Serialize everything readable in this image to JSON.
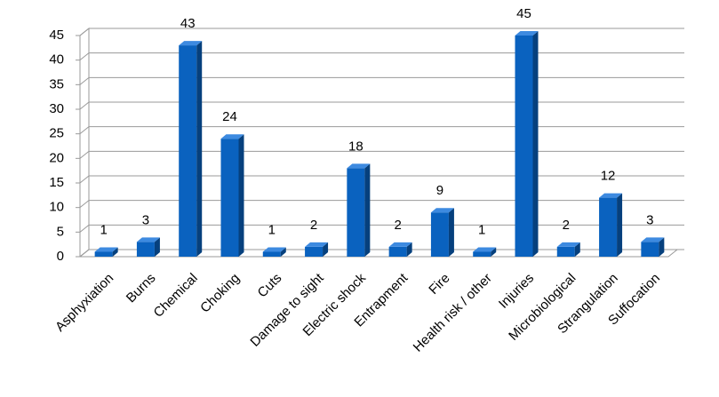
{
  "chart_data": {
    "type": "bar",
    "categories": [
      "Asphyxiation",
      "Burns",
      "Chemical",
      "Choking",
      "Cuts",
      "Damage to sight",
      "Electric shock",
      "Entrapment",
      "Fire",
      "Health risk / other",
      "Injuries",
      "Microbiological",
      "Strangulation",
      "Suffocation"
    ],
    "values": [
      1,
      3,
      43,
      24,
      1,
      2,
      18,
      2,
      9,
      1,
      45,
      2,
      12,
      3
    ],
    "color": "#0a62bf",
    "ylim": [
      0,
      45
    ],
    "yticks": [
      0,
      5,
      10,
      15,
      20,
      25,
      30,
      35,
      40,
      45
    ],
    "grid": true
  }
}
